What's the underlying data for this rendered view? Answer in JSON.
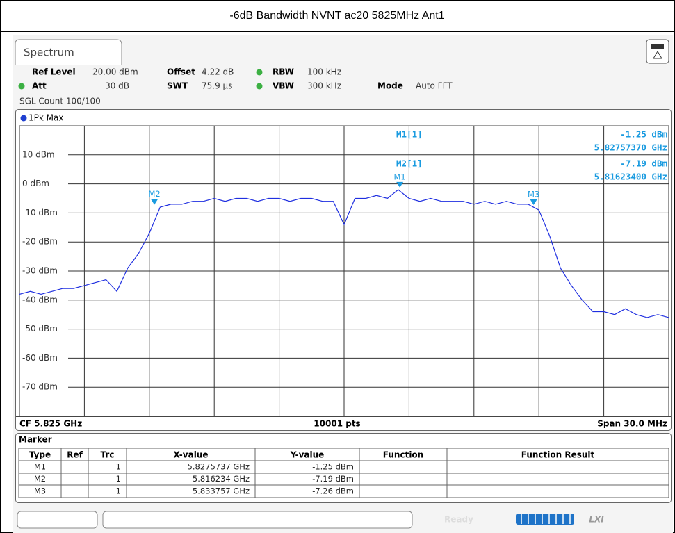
{
  "header": {
    "title": "-6dB Bandwidth NVNT ac20 5825MHz Ant1"
  },
  "tab": "Spectrum",
  "settings": {
    "row1": [
      {
        "label": "Ref Level",
        "value": "20.00 dBm"
      },
      {
        "label": "Offset",
        "value": "4.22 dB"
      },
      {
        "label": "RBW",
        "value": "100 kHz"
      }
    ],
    "row2": [
      {
        "label": "Att",
        "value": "30 dB"
      },
      {
        "label": "SWT",
        "value": "75.9 µs"
      },
      {
        "label": "VBW",
        "value": "300 kHz"
      },
      {
        "label": "Mode",
        "value": "Auto FFT"
      }
    ],
    "count": "SGL Count 100/100"
  },
  "chart_data": {
    "type": "line",
    "x": [
      5.81,
      5.8105,
      5.811,
      5.8115,
      5.812,
      5.8125,
      5.813,
      5.8135,
      5.814,
      5.8145,
      5.815,
      5.8155,
      5.816,
      5.8165,
      5.817,
      5.8175,
      5.818,
      5.8185,
      5.819,
      5.8195,
      5.82,
      5.8205,
      5.821,
      5.8215,
      5.822,
      5.8225,
      5.823,
      5.8235,
      5.824,
      5.8245,
      5.825,
      5.8255,
      5.826,
      5.8265,
      5.827,
      5.8275,
      5.828,
      5.8285,
      5.829,
      5.8295,
      5.83,
      5.8305,
      5.831,
      5.8315,
      5.832,
      5.8325,
      5.833,
      5.8335,
      5.834,
      5.8345,
      5.835,
      5.8355,
      5.836,
      5.8365,
      5.837,
      5.8375,
      5.838,
      5.8385,
      5.839,
      5.8395,
      5.84
    ],
    "series": [
      {
        "name": "1Pk Max",
        "color": "#1f2fe0",
        "values": [
          -38,
          -37,
          -38,
          -37,
          -36,
          -36,
          -35,
          -34,
          -33,
          -37,
          -29,
          -24,
          -17,
          -8,
          -7,
          -7,
          -6,
          -6,
          -5,
          -6,
          -5,
          -5,
          -6,
          -5,
          -5,
          -6,
          -5,
          -5,
          -6,
          -6,
          -14,
          -5,
          -5,
          -4,
          -5,
          -2,
          -5,
          -6,
          -5,
          -6,
          -6,
          -6,
          -7,
          -6,
          -7,
          -6,
          -7,
          -7,
          -9,
          -18,
          -29,
          -35,
          -40,
          -44,
          -44,
          -45,
          -43,
          -45,
          -46,
          -45,
          -46
        ]
      }
    ],
    "xlim": [
      5.81,
      5.84
    ],
    "xticks": [
      5.81,
      5.813,
      5.816,
      5.819,
      5.822,
      5.825,
      5.828,
      5.831,
      5.834,
      5.837,
      5.84
    ],
    "ylim": [
      -80,
      20
    ],
    "yticks": [
      {
        "value": 10,
        "label": "10 dBm"
      },
      {
        "value": 0,
        "label": "0 dBm"
      },
      {
        "value": -10,
        "label": "-10 dBm"
      },
      {
        "value": -20,
        "label": "-20 dBm"
      },
      {
        "value": -30,
        "label": "-30 dBm"
      },
      {
        "value": -40,
        "label": "-40 dBm"
      },
      {
        "value": -50,
        "label": "-50 dBm"
      },
      {
        "value": -60,
        "label": "-60 dBm"
      },
      {
        "value": -70,
        "label": "-70 dBm"
      }
    ],
    "grid": true,
    "markers": [
      {
        "label": "M1",
        "x": 5.8275737,
        "y": -1.25
      },
      {
        "label": "M2",
        "x": 5.816234,
        "y": -7.19
      },
      {
        "label": "M3",
        "x": 5.833757,
        "y": -7.26
      }
    ],
    "marker_info": [
      {
        "name": "M1[1]",
        "level": "-1.25 dBm",
        "freq": "5.82757370 GHz"
      },
      {
        "name": "M2[1]",
        "level": "-7.19 dBm",
        "freq": "5.81623400 GHz"
      }
    ],
    "footer": {
      "center_freq": "CF 5.825 GHz",
      "points": "10001 pts",
      "span": "Span 30.0 MHz"
    }
  },
  "marker_table": {
    "title": "Marker",
    "columns": [
      "Type",
      "Ref",
      "Trc",
      "X-value",
      "Y-value",
      "Function",
      "Function Result"
    ],
    "rows": [
      [
        "M1",
        "1",
        "5.8275737 GHz",
        "-1.25 dBm"
      ],
      [
        "M2",
        "1",
        "5.816234 GHz",
        "-7.19 dBm"
      ],
      [
        "M3",
        "1",
        "5.833757 GHz",
        "-7.26 dBm"
      ]
    ]
  },
  "status": {
    "state": "Ready",
    "lxi": "LXI"
  }
}
